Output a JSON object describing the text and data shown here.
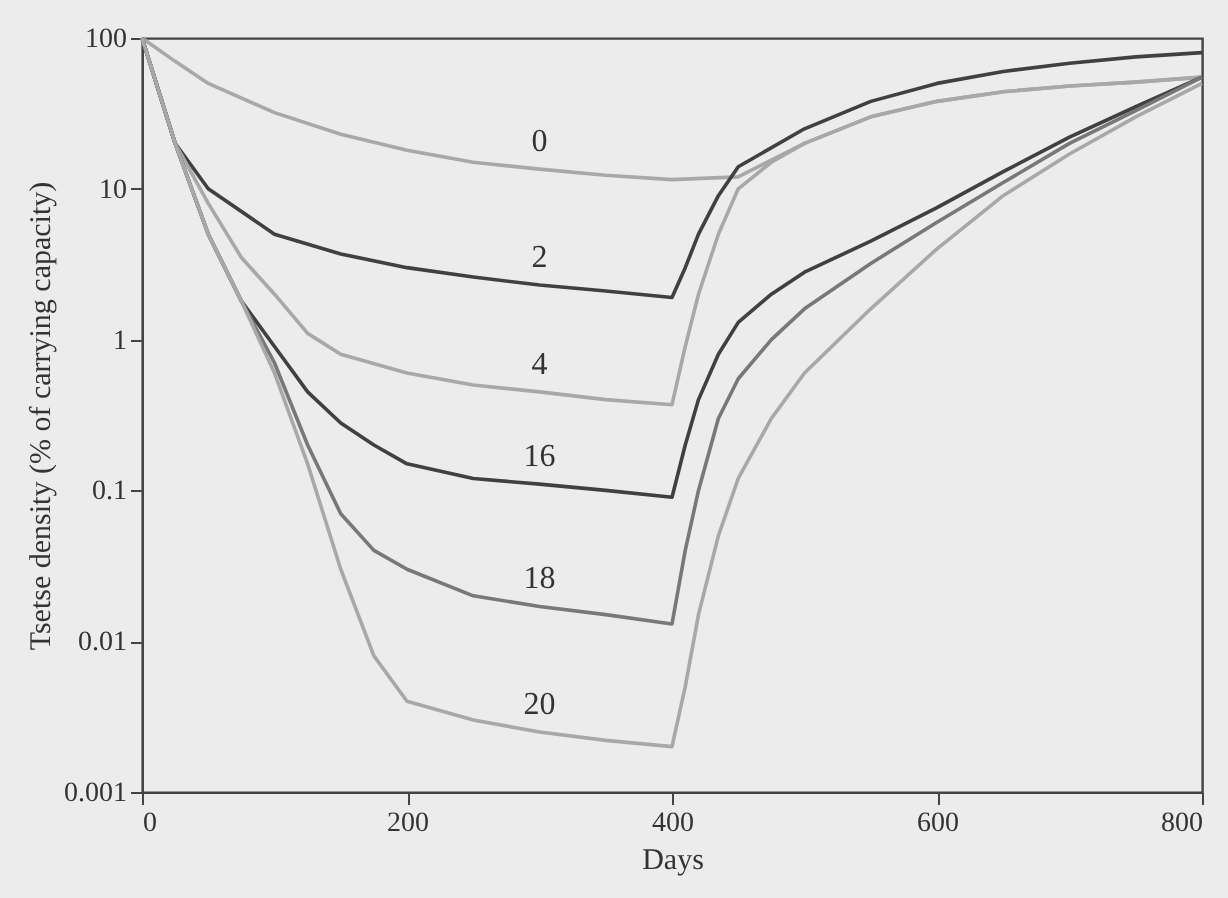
{
  "chart_data": {
    "type": "line",
    "xlabel": "Days",
    "ylabel": "Tsetse density (% of carrying capacity)",
    "log": true,
    "grid": false,
    "legend": false,
    "marker": "none",
    "line_style": "solid",
    "xlim": [
      0,
      800
    ],
    "xticks": [
      0,
      200,
      400,
      600,
      800
    ],
    "ylim": [
      0.001,
      100
    ],
    "yticks": [
      0.001,
      0.01,
      0.1,
      1,
      10,
      100
    ],
    "series": [
      {
        "name": "0",
        "color": "#a8a8a8",
        "x": [
          0,
          25,
          50,
          100,
          150,
          200,
          250,
          300,
          350,
          400,
          450,
          500,
          550,
          600,
          650,
          700,
          750,
          800
        ],
        "values": [
          100,
          70,
          50,
          32,
          23,
          18,
          15,
          13.5,
          12.3,
          11.5,
          12,
          20,
          30,
          38,
          44,
          48,
          51,
          55
        ]
      },
      {
        "name": "2",
        "color": "#404040",
        "x": [
          0,
          25,
          50,
          100,
          150,
          200,
          250,
          300,
          350,
          400,
          410,
          420,
          435,
          450,
          500,
          550,
          600,
          650,
          700,
          750,
          800
        ],
        "values": [
          100,
          20,
          10,
          5,
          3.7,
          3,
          2.6,
          2.3,
          2.1,
          1.9,
          3,
          5,
          9,
          14,
          25,
          38,
          50,
          60,
          68,
          75,
          80
        ]
      },
      {
        "name": "4",
        "color": "#a8a8a8",
        "x": [
          0,
          25,
          50,
          75,
          100,
          125,
          150,
          200,
          250,
          300,
          350,
          400,
          410,
          420,
          435,
          450,
          475,
          500,
          550,
          600,
          650,
          700,
          750,
          800
        ],
        "values": [
          100,
          20,
          8,
          3.5,
          2,
          1.1,
          0.8,
          0.6,
          0.5,
          0.45,
          0.4,
          0.37,
          0.9,
          2,
          5,
          10,
          15,
          20,
          30,
          38,
          44,
          48,
          51,
          55
        ]
      },
      {
        "name": "16",
        "color": "#404040",
        "x": [
          0,
          25,
          50,
          75,
          100,
          125,
          150,
          175,
          200,
          250,
          300,
          350,
          400,
          410,
          420,
          435,
          450,
          475,
          500,
          550,
          600,
          650,
          700,
          750,
          800
        ],
        "values": [
          100,
          20,
          5,
          1.8,
          0.9,
          0.45,
          0.28,
          0.2,
          0.15,
          0.12,
          0.11,
          0.1,
          0.09,
          0.2,
          0.4,
          0.8,
          1.3,
          2,
          2.8,
          4.5,
          7.5,
          13,
          22,
          35,
          55
        ]
      },
      {
        "name": "18",
        "color": "#787878",
        "x": [
          0,
          25,
          50,
          75,
          100,
          125,
          150,
          175,
          200,
          250,
          300,
          350,
          400,
          410,
          420,
          435,
          450,
          475,
          500,
          550,
          600,
          650,
          700,
          750,
          800
        ],
        "values": [
          100,
          20,
          5,
          1.8,
          0.7,
          0.2,
          0.07,
          0.04,
          0.03,
          0.02,
          0.017,
          0.015,
          0.013,
          0.04,
          0.1,
          0.3,
          0.55,
          1,
          1.6,
          3.2,
          6,
          11,
          20,
          33,
          55
        ]
      },
      {
        "name": "20",
        "color": "#a8a8a8",
        "x": [
          0,
          25,
          50,
          75,
          100,
          125,
          150,
          175,
          200,
          250,
          300,
          350,
          400,
          410,
          420,
          435,
          450,
          475,
          500,
          550,
          600,
          650,
          700,
          750,
          800
        ],
        "values": [
          100,
          20,
          5,
          1.8,
          0.6,
          0.15,
          0.03,
          0.008,
          0.004,
          0.003,
          0.0025,
          0.0022,
          0.002,
          0.005,
          0.015,
          0.05,
          0.12,
          0.3,
          0.6,
          1.6,
          4,
          9,
          17,
          30,
          50
        ]
      }
    ]
  }
}
